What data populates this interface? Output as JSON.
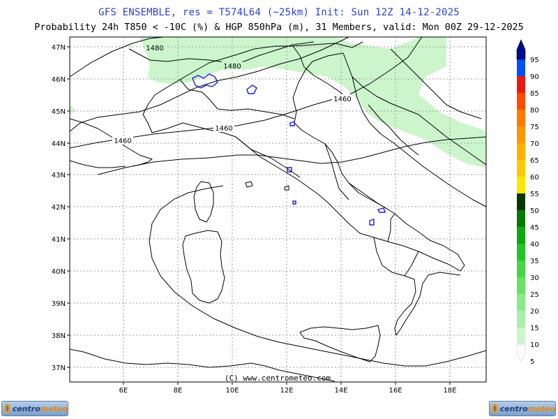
{
  "header": {
    "line1": "GFS ENSEMBLE, res = T574L64 (~25km)   Init: Sun 12Z 14-12-2025",
    "line2": "Probability 24h T850 < -10C (%) & HGP 850hPa (m), 31 Members, valid: Mon 00Z 29-12-2025"
  },
  "map": {
    "lat_labels": [
      "47N",
      "46N",
      "45N",
      "44N",
      "43N",
      "42N",
      "41N",
      "40N",
      "39N",
      "38N",
      "37N"
    ],
    "lon_labels": [
      "6E",
      "8E",
      "10E",
      "12E",
      "14E",
      "16E",
      "18E"
    ],
    "contour_labels": [
      "1480",
      "1480",
      "1460",
      "1460",
      "1460"
    ],
    "copyright": "(C) www.centrometeo.com",
    "probability_shading_color": "#ccf5cc"
  },
  "scale": {
    "levels": [
      "5",
      "10",
      "15",
      "20",
      "25",
      "30",
      "35",
      "40",
      "45",
      "50",
      "55",
      "60",
      "65",
      "70",
      "75",
      "80",
      "85",
      "90",
      "95"
    ],
    "colors": [
      "#ffffff",
      "#ccf5cc",
      "#aaf0aa",
      "#88eb88",
      "#66e266",
      "#44d644",
      "#22c622",
      "#10a810",
      "#067806",
      "#053805",
      "#ffe600",
      "#ffc800",
      "#ffb000",
      "#ff9600",
      "#ff7a00",
      "#ff4a00",
      "#e81a10",
      "#0050ff",
      "#000c90"
    ]
  },
  "logos": {
    "left_text_a": "centro",
    "left_text_b": "meteo",
    "right_text_a": "centro",
    "right_text_b": "meteo"
  }
}
